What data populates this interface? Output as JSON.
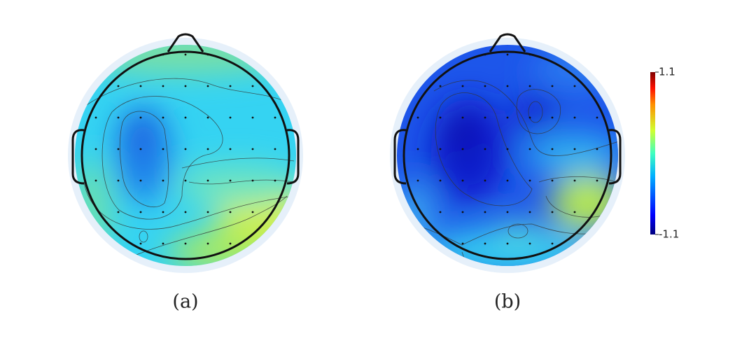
{
  "panels": [
    {
      "label": "(a)"
    },
    {
      "label": "(b)"
    }
  ],
  "colorbar": {
    "max": 1.1,
    "min": -1.1
  }
}
